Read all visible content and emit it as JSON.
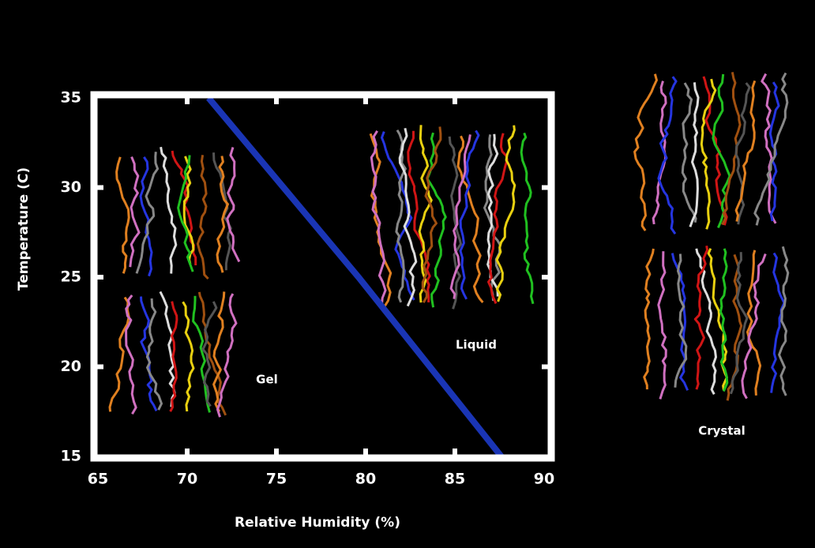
{
  "chart_data": {
    "type": "line",
    "x": [
      71.2,
      75.4,
      79.6,
      83.6,
      87.6
    ],
    "values": [
      35,
      30,
      25,
      20,
      15
    ],
    "color": "#1a35b5",
    "xlim": [
      65,
      90
    ],
    "xticks": [
      65,
      70,
      75,
      80,
      85,
      90
    ],
    "ylim": [
      15,
      35
    ],
    "yticks": [
      15,
      20,
      25,
      30,
      35
    ],
    "xlabel": "Relative Humidity (%)",
    "ylabel": "Temperature (C)",
    "annotations": [
      "Gel",
      "Liquid",
      "Crystal"
    ]
  }
}
